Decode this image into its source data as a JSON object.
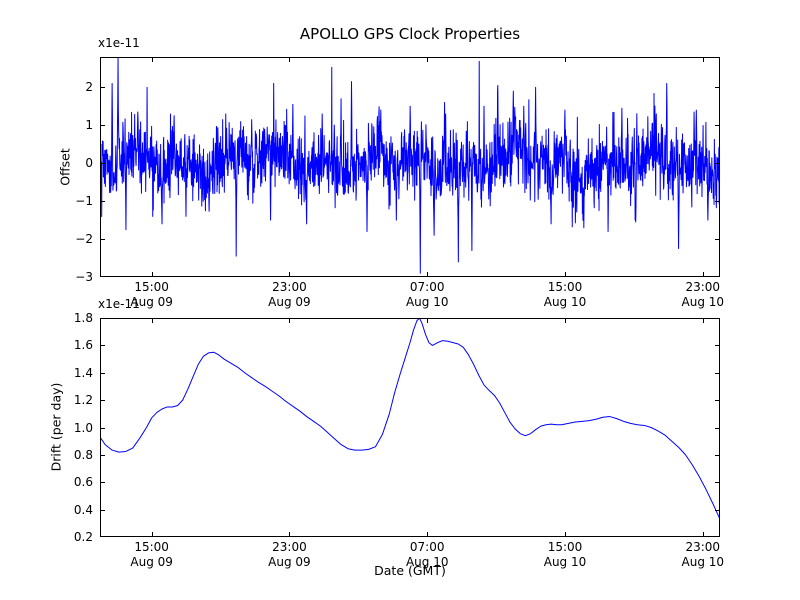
{
  "figure": {
    "background": "#ffffff",
    "line_color": "#0000ff",
    "frame_color": "#000000"
  },
  "chart_data": [
    {
      "type": "line",
      "name": "offset",
      "title": "APOLLO GPS Clock Properties",
      "ylabel": "Offset",
      "y_offset_text": "x1e-11",
      "ylim": [
        -3,
        2.8
      ],
      "yticks": [
        {
          "v": -3,
          "label": "−3"
        },
        {
          "v": -2,
          "label": "−2"
        },
        {
          "v": -1,
          "label": "−1"
        },
        {
          "v": 0,
          "label": "0"
        },
        {
          "v": 1,
          "label": "1"
        },
        {
          "v": 2,
          "label": "2"
        }
      ],
      "xlim_hours": [
        12,
        48
      ],
      "xticks": [
        {
          "t": 15,
          "time": "15:00",
          "date": "Aug 09"
        },
        {
          "t": 23,
          "time": "23:00",
          "date": "Aug 09"
        },
        {
          "t": 31,
          "time": "07:00",
          "date": "Aug 10"
        },
        {
          "t": 39,
          "time": "15:00",
          "date": "Aug 10"
        },
        {
          "t": 47,
          "time": "23:00",
          "date": "Aug 10"
        }
      ],
      "grid": false,
      "legend": "none",
      "series": {
        "name": "clock offset",
        "color": "#0000ff",
        "representation": "procedural-noise",
        "description": "high-frequency noisy clock offset centered near 0, typical band ±1e-11",
        "n_points": 2200,
        "seed": 42,
        "noise_std": 0.44,
        "tail_probability": 0.05,
        "tail_std": 0.9,
        "wander": [
          {
            "amp": 0.2,
            "freq": 0.85,
            "phase": 2.1
          },
          {
            "amp": 0.14,
            "freq": 2.3,
            "phase": 0.6
          },
          {
            "amp": 0.1,
            "freq": 4.7,
            "phase": 1.0
          }
        ],
        "spikes": [
          [
            12.7,
            2.1
          ],
          [
            13.05,
            2.8
          ],
          [
            13.5,
            -1.75
          ],
          [
            14.2,
            1.35
          ],
          [
            15.6,
            -1.6
          ],
          [
            16.3,
            1.25
          ],
          [
            17.0,
            -1.4
          ],
          [
            19.3,
            1.3
          ],
          [
            19.9,
            -2.45
          ],
          [
            20.8,
            1.15
          ],
          [
            21.9,
            -1.5
          ],
          [
            23.2,
            1.55
          ],
          [
            24.0,
            -1.6
          ],
          [
            24.9,
            1.3
          ],
          [
            26.0,
            1.7
          ],
          [
            26.6,
            2.15
          ],
          [
            27.5,
            -1.8
          ],
          [
            28.3,
            1.4
          ],
          [
            29.2,
            -1.5
          ],
          [
            30.0,
            1.5
          ],
          [
            30.6,
            -2.9
          ],
          [
            31.4,
            -1.9
          ],
          [
            32.0,
            1.6
          ],
          [
            32.8,
            -2.6
          ],
          [
            33.6,
            -2.3
          ],
          [
            34.3,
            1.5
          ],
          [
            35.1,
            2.05
          ],
          [
            36.0,
            1.9
          ],
          [
            36.6,
            1.5
          ],
          [
            37.3,
            2.0
          ],
          [
            38.2,
            -1.6
          ],
          [
            39.0,
            1.4
          ],
          [
            40.1,
            -1.7
          ],
          [
            41.5,
            -1.8
          ],
          [
            42.3,
            1.45
          ],
          [
            43.1,
            -1.55
          ],
          [
            44.3,
            1.3
          ],
          [
            44.9,
            2.1
          ],
          [
            45.6,
            -2.25
          ],
          [
            46.5,
            1.35
          ],
          [
            47.3,
            -1.5
          ]
        ]
      }
    },
    {
      "type": "line",
      "name": "drift",
      "ylabel": "Drift (per day)",
      "xlabel": "Date (GMT)",
      "y_offset_text": "x1e-11",
      "ylim": [
        0.2,
        1.8
      ],
      "yticks": [
        {
          "v": 0.2,
          "label": "0.2"
        },
        {
          "v": 0.4,
          "label": "0.4"
        },
        {
          "v": 0.6,
          "label": "0.6"
        },
        {
          "v": 0.8,
          "label": "0.8"
        },
        {
          "v": 1.0,
          "label": "1.0"
        },
        {
          "v": 1.2,
          "label": "1.2"
        },
        {
          "v": 1.4,
          "label": "1.4"
        },
        {
          "v": 1.6,
          "label": "1.6"
        },
        {
          "v": 1.8,
          "label": "1.8"
        }
      ],
      "xlim_hours": [
        12,
        48
      ],
      "xticks": [
        {
          "t": 15,
          "time": "15:00",
          "date": "Aug 09"
        },
        {
          "t": 23,
          "time": "23:00",
          "date": "Aug 09"
        },
        {
          "t": 31,
          "time": "07:00",
          "date": "Aug 10"
        },
        {
          "t": 39,
          "time": "15:00",
          "date": "Aug 10"
        },
        {
          "t": 47,
          "time": "23:00",
          "date": "Aug 10"
        }
      ],
      "grid": false,
      "legend": "none",
      "points": [
        [
          12.0,
          0.93
        ],
        [
          12.3,
          0.875
        ],
        [
          12.7,
          0.835
        ],
        [
          13.1,
          0.82
        ],
        [
          13.5,
          0.825
        ],
        [
          13.9,
          0.85
        ],
        [
          14.3,
          0.92
        ],
        [
          14.7,
          1.0
        ],
        [
          15.0,
          1.07
        ],
        [
          15.3,
          1.11
        ],
        [
          15.6,
          1.135
        ],
        [
          15.9,
          1.15
        ],
        [
          16.2,
          1.15
        ],
        [
          16.5,
          1.16
        ],
        [
          16.8,
          1.2
        ],
        [
          17.1,
          1.28
        ],
        [
          17.4,
          1.37
        ],
        [
          17.7,
          1.46
        ],
        [
          18.0,
          1.52
        ],
        [
          18.3,
          1.545
        ],
        [
          18.6,
          1.55
        ],
        [
          18.9,
          1.53
        ],
        [
          19.2,
          1.5
        ],
        [
          19.6,
          1.47
        ],
        [
          20.0,
          1.44
        ],
        [
          20.4,
          1.4
        ],
        [
          20.8,
          1.365
        ],
        [
          21.2,
          1.33
        ],
        [
          21.6,
          1.3
        ],
        [
          22.0,
          1.265
        ],
        [
          22.4,
          1.23
        ],
        [
          22.8,
          1.19
        ],
        [
          23.2,
          1.155
        ],
        [
          23.6,
          1.12
        ],
        [
          24.0,
          1.08
        ],
        [
          24.4,
          1.045
        ],
        [
          24.8,
          1.01
        ],
        [
          25.2,
          0.965
        ],
        [
          25.6,
          0.92
        ],
        [
          26.0,
          0.875
        ],
        [
          26.4,
          0.845
        ],
        [
          26.8,
          0.835
        ],
        [
          27.2,
          0.835
        ],
        [
          27.6,
          0.84
        ],
        [
          28.0,
          0.86
        ],
        [
          28.4,
          0.95
        ],
        [
          28.8,
          1.1
        ],
        [
          29.1,
          1.25
        ],
        [
          29.4,
          1.38
        ],
        [
          29.7,
          1.5
        ],
        [
          30.0,
          1.62
        ],
        [
          30.2,
          1.71
        ],
        [
          30.4,
          1.78
        ],
        [
          30.55,
          1.8
        ],
        [
          30.7,
          1.76
        ],
        [
          30.9,
          1.68
        ],
        [
          31.1,
          1.62
        ],
        [
          31.3,
          1.6
        ],
        [
          31.6,
          1.62
        ],
        [
          31.9,
          1.635
        ],
        [
          32.2,
          1.63
        ],
        [
          32.5,
          1.62
        ],
        [
          32.8,
          1.61
        ],
        [
          33.1,
          1.585
        ],
        [
          33.4,
          1.53
        ],
        [
          33.7,
          1.46
        ],
        [
          34.0,
          1.38
        ],
        [
          34.3,
          1.31
        ],
        [
          34.6,
          1.27
        ],
        [
          34.9,
          1.235
        ],
        [
          35.2,
          1.18
        ],
        [
          35.5,
          1.11
        ],
        [
          35.8,
          1.04
        ],
        [
          36.1,
          0.99
        ],
        [
          36.4,
          0.955
        ],
        [
          36.7,
          0.94
        ],
        [
          37.0,
          0.955
        ],
        [
          37.3,
          0.985
        ],
        [
          37.6,
          1.01
        ],
        [
          37.9,
          1.02
        ],
        [
          38.2,
          1.025
        ],
        [
          38.5,
          1.02
        ],
        [
          38.8,
          1.02
        ],
        [
          39.2,
          1.03
        ],
        [
          39.6,
          1.04
        ],
        [
          40.0,
          1.045
        ],
        [
          40.4,
          1.05
        ],
        [
          40.8,
          1.06
        ],
        [
          41.2,
          1.075
        ],
        [
          41.6,
          1.08
        ],
        [
          42.0,
          1.065
        ],
        [
          42.4,
          1.045
        ],
        [
          42.8,
          1.03
        ],
        [
          43.2,
          1.02
        ],
        [
          43.6,
          1.015
        ],
        [
          44.0,
          1.0
        ],
        [
          44.4,
          0.975
        ],
        [
          44.8,
          0.945
        ],
        [
          45.2,
          0.9
        ],
        [
          45.6,
          0.855
        ],
        [
          46.0,
          0.8
        ],
        [
          46.4,
          0.725
        ],
        [
          46.8,
          0.64
        ],
        [
          47.2,
          0.545
        ],
        [
          47.6,
          0.44
        ],
        [
          48.0,
          0.33
        ]
      ]
    }
  ]
}
